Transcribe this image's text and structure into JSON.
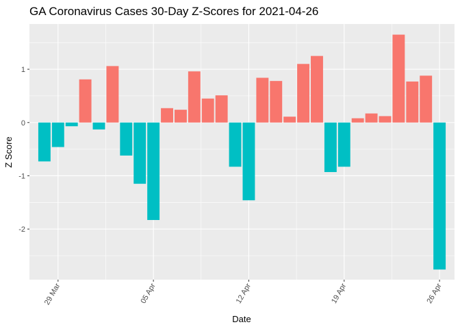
{
  "chart_data": {
    "type": "bar",
    "title": "GA Coronavirus Cases 30-Day Z-Scores for 2021-04-26",
    "xlabel": "Date",
    "ylabel": "Z Score",
    "ylim": [
      -2.95,
      1.85
    ],
    "y_ticks": [
      -2,
      -1,
      0,
      1
    ],
    "y_tick_labels": [
      "-2",
      "-1",
      "0",
      "1"
    ],
    "x_tick_labels": [
      {
        "label": "29 Mar",
        "date": "2021-03-29"
      },
      {
        "label": "05 Apr",
        "date": "2021-04-05"
      },
      {
        "label": "12 Apr",
        "date": "2021-04-12"
      },
      {
        "label": "19 Apr",
        "date": "2021-04-19"
      },
      {
        "label": "26 Apr",
        "date": "2021-04-26"
      }
    ],
    "grid": true,
    "legend": "none",
    "colors": {
      "positive": "#F8766D",
      "negative": "#00BFC4",
      "panel": "#EBEBEB",
      "grid": "#FFFFFF"
    },
    "dates": [
      "2021-03-28",
      "2021-03-29",
      "2021-03-30",
      "2021-03-31",
      "2021-04-01",
      "2021-04-02",
      "2021-04-03",
      "2021-04-04",
      "2021-04-05",
      "2021-04-06",
      "2021-04-07",
      "2021-04-08",
      "2021-04-09",
      "2021-04-10",
      "2021-04-11",
      "2021-04-12",
      "2021-04-13",
      "2021-04-14",
      "2021-04-15",
      "2021-04-16",
      "2021-04-17",
      "2021-04-18",
      "2021-04-19",
      "2021-04-20",
      "2021-04-21",
      "2021-04-22",
      "2021-04-23",
      "2021-04-24",
      "2021-04-25",
      "2021-04-26"
    ],
    "values": [
      -0.73,
      -0.46,
      -0.07,
      0.81,
      -0.13,
      1.06,
      -0.62,
      -1.15,
      -1.83,
      0.27,
      0.24,
      0.96,
      0.45,
      0.51,
      -0.83,
      -1.46,
      0.84,
      0.78,
      0.11,
      1.1,
      1.25,
      -0.93,
      -0.83,
      0.08,
      0.17,
      0.12,
      1.65,
      0.77,
      0.88,
      -2.76
    ]
  }
}
